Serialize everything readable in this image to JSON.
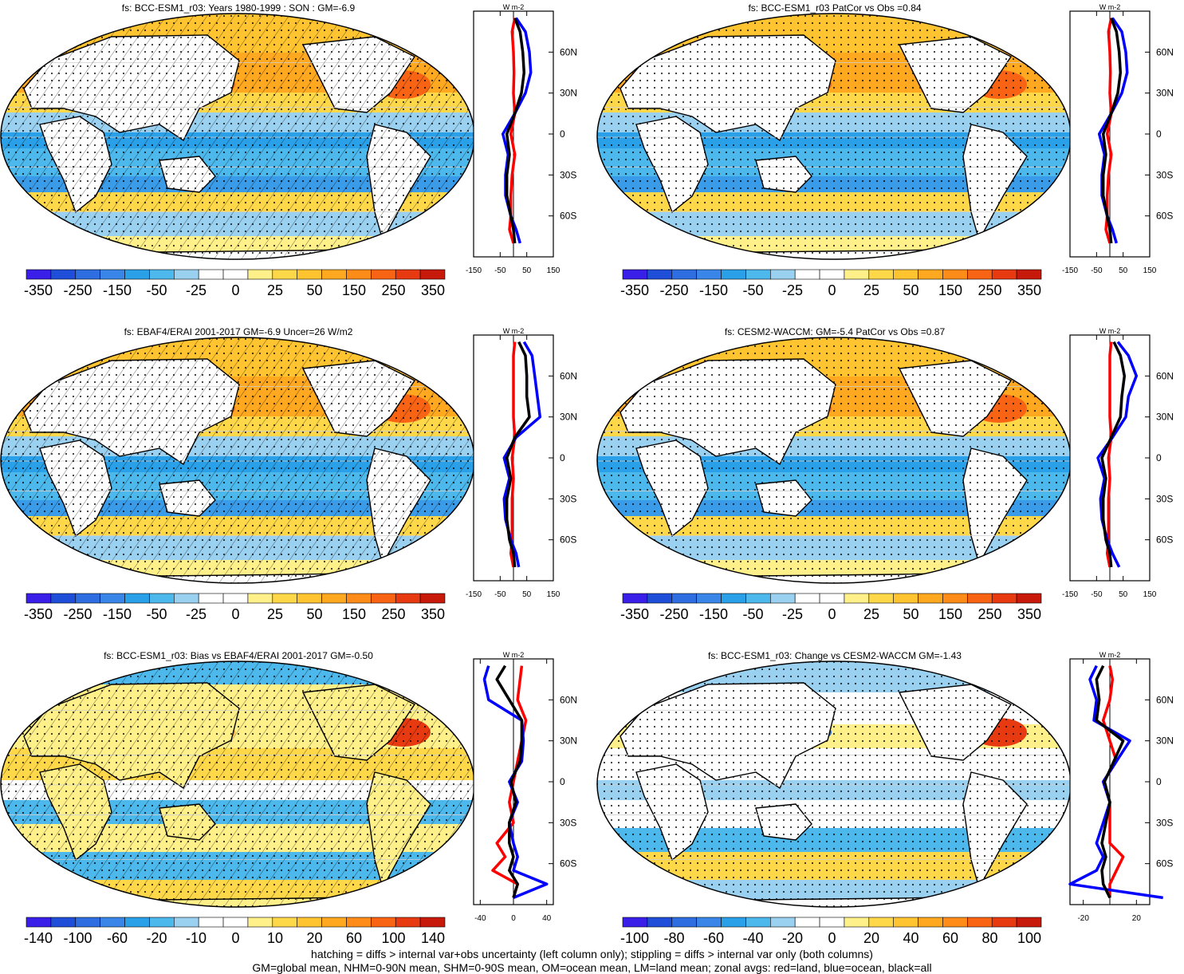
{
  "chart_data": [
    {
      "type": "map-with-zonal-profile",
      "title": "fs: BCC-ESM1_r03: Years 1980-1999 : SON : GM=-6.9",
      "colorbar_labels": [
        "-350",
        "-250",
        "-150",
        "-50",
        "-25",
        "0",
        "25",
        "50",
        "150",
        "250",
        "350"
      ],
      "zonal_unit": "W m-2",
      "zonal_xticks": [
        "-150",
        "-50",
        "50",
        "150"
      ],
      "zonal_xlim": [
        -150,
        150
      ],
      "lat_labels": [
        "60N",
        "30N",
        "0",
        "30S",
        "60S"
      ],
      "series": [
        {
          "name": "land",
          "color": "#ff0000",
          "lat": [
            85,
            75,
            60,
            45,
            30,
            15,
            0,
            -15,
            -30,
            -45,
            -60,
            -70,
            -80
          ],
          "values": [
            5,
            -5,
            0,
            2,
            0,
            5,
            -10,
            5,
            -5,
            -10,
            -10,
            -15,
            0
          ]
        },
        {
          "name": "ocean",
          "color": "#0000ff",
          "lat": [
            85,
            75,
            60,
            45,
            30,
            15,
            0,
            -15,
            -30,
            -45,
            -60,
            -70,
            -80
          ],
          "values": [
            10,
            45,
            60,
            65,
            45,
            5,
            -40,
            -20,
            -30,
            -30,
            -10,
            10,
            25
          ]
        },
        {
          "name": "all",
          "color": "#000000",
          "lat": [
            85,
            75,
            60,
            45,
            30,
            15,
            0,
            -15,
            -30,
            -45,
            -60,
            -70,
            -80
          ],
          "values": [
            5,
            25,
            35,
            40,
            30,
            5,
            -25,
            -15,
            -25,
            -25,
            -10,
            0,
            5
          ]
        }
      ]
    },
    {
      "type": "map-with-zonal-profile",
      "title": "fs: BCC-ESM1_r03 PatCor vs Obs =0.84",
      "colorbar_labels": [
        "-350",
        "-250",
        "-150",
        "-50",
        "-25",
        "0",
        "25",
        "50",
        "150",
        "250",
        "350"
      ],
      "zonal_unit": "W m-2",
      "zonal_xticks": [
        "-150",
        "-50",
        "50",
        "150"
      ],
      "zonal_xlim": [
        -150,
        150
      ],
      "lat_labels": [
        "60N",
        "30N",
        "0",
        "30S",
        "60S"
      ],
      "series": [
        {
          "name": "land",
          "color": "#ff0000",
          "lat": [
            85,
            75,
            60,
            45,
            30,
            15,
            0,
            -15,
            -30,
            -45,
            -60,
            -70,
            -80
          ],
          "values": [
            5,
            -5,
            0,
            2,
            0,
            5,
            -10,
            5,
            -5,
            -10,
            -10,
            -15,
            0
          ]
        },
        {
          "name": "ocean",
          "color": "#0000ff",
          "lat": [
            85,
            75,
            60,
            45,
            30,
            15,
            0,
            -15,
            -30,
            -45,
            -60,
            -70,
            -80
          ],
          "values": [
            10,
            45,
            60,
            65,
            45,
            5,
            -40,
            -20,
            -30,
            -30,
            -10,
            10,
            25
          ]
        },
        {
          "name": "all",
          "color": "#000000",
          "lat": [
            85,
            75,
            60,
            45,
            30,
            15,
            0,
            -15,
            -30,
            -45,
            -60,
            -70,
            -80
          ],
          "values": [
            5,
            25,
            35,
            40,
            30,
            5,
            -25,
            -15,
            -25,
            -25,
            -10,
            0,
            5
          ]
        }
      ]
    },
    {
      "type": "map-with-zonal-profile",
      "title": "fs: EBAF4/ERAI 2001-2017 GM=-6.9 Uncer=26 W/m2",
      "colorbar_labels": [
        "-350",
        "-250",
        "-150",
        "-50",
        "-25",
        "0",
        "25",
        "50",
        "150",
        "250",
        "350"
      ],
      "zonal_unit": "W m-2",
      "zonal_xticks": [
        "-150",
        "-50",
        "50",
        "150"
      ],
      "zonal_xlim": [
        -150,
        150
      ],
      "lat_labels": [
        "60N",
        "30N",
        "0",
        "30S",
        "60S"
      ],
      "series": [
        {
          "name": "land",
          "color": "#ff0000",
          "lat": [
            85,
            75,
            60,
            45,
            30,
            15,
            0,
            -15,
            -30,
            -45,
            -60,
            -70,
            -80
          ],
          "values": [
            5,
            0,
            0,
            0,
            0,
            5,
            -5,
            0,
            -5,
            -5,
            -5,
            -10,
            0
          ]
        },
        {
          "name": "ocean",
          "color": "#0000ff",
          "lat": [
            85,
            75,
            60,
            45,
            30,
            15,
            0,
            -15,
            -30,
            -45,
            -60,
            -70,
            -80
          ],
          "values": [
            40,
            70,
            80,
            90,
            100,
            10,
            -35,
            -15,
            -35,
            -30,
            -10,
            10,
            20
          ]
        },
        {
          "name": "all",
          "color": "#000000",
          "lat": [
            85,
            75,
            60,
            45,
            30,
            15,
            0,
            -15,
            -30,
            -45,
            -60,
            -70,
            -80
          ],
          "values": [
            20,
            45,
            50,
            50,
            60,
            5,
            -25,
            -10,
            -25,
            -25,
            -15,
            0,
            5
          ]
        }
      ]
    },
    {
      "type": "map-with-zonal-profile",
      "title": "fs: CESM2-WACCM: GM=-5.4 PatCor vs Obs =0.87",
      "colorbar_labels": [
        "-350",
        "-250",
        "-150",
        "-50",
        "-25",
        "0",
        "25",
        "50",
        "150",
        "250",
        "350"
      ],
      "zonal_unit": "W m-2",
      "zonal_xticks": [
        "-150",
        "-50",
        "50",
        "150"
      ],
      "zonal_xlim": [
        -150,
        150
      ],
      "lat_labels": [
        "60N",
        "30N",
        "0",
        "30S",
        "60S"
      ],
      "series": [
        {
          "name": "land",
          "color": "#ff0000",
          "lat": [
            85,
            75,
            60,
            45,
            30,
            15,
            0,
            -15,
            -30,
            -45,
            -60,
            -70,
            -80
          ],
          "values": [
            5,
            0,
            0,
            0,
            0,
            5,
            -5,
            0,
            -5,
            -5,
            -5,
            -10,
            0
          ]
        },
        {
          "name": "ocean",
          "color": "#0000ff",
          "lat": [
            85,
            75,
            60,
            45,
            30,
            15,
            0,
            -15,
            -30,
            -45,
            -60,
            -70,
            -80
          ],
          "values": [
            30,
            70,
            100,
            70,
            60,
            10,
            -45,
            -20,
            -35,
            -30,
            -10,
            10,
            35
          ]
        },
        {
          "name": "all",
          "color": "#000000",
          "lat": [
            85,
            75,
            60,
            45,
            30,
            15,
            0,
            -15,
            -30,
            -45,
            -60,
            -70,
            -80
          ],
          "values": [
            15,
            40,
            55,
            45,
            40,
            5,
            -30,
            -15,
            -25,
            -25,
            -15,
            0,
            5
          ]
        }
      ]
    },
    {
      "type": "map-with-zonal-profile",
      "title": "fs: BCC-ESM1_r03: Bias vs EBAF4/ERAI 2001-2017  GM=-0.50",
      "colorbar_labels": [
        "-140",
        "-100",
        "-60",
        "-20",
        "-10",
        "0",
        "10",
        "20",
        "60",
        "100",
        "140"
      ],
      "zonal_unit": "W m-2",
      "zonal_xticks": [
        "-40",
        "0",
        "40"
      ],
      "zonal_xlim": [
        -48,
        48
      ],
      "lat_labels": [
        "60N",
        "30N",
        "0",
        "30S",
        "60S"
      ],
      "series": [
        {
          "name": "land",
          "color": "#ff0000",
          "lat": [
            85,
            75,
            60,
            45,
            30,
            15,
            0,
            -15,
            -30,
            -45,
            -55,
            -65,
            -75,
            -85
          ],
          "values": [
            10,
            8,
            5,
            15,
            10,
            5,
            0,
            -5,
            0,
            -20,
            -10,
            -25,
            5,
            0
          ]
        },
        {
          "name": "ocean",
          "color": "#0000ff",
          "lat": [
            85,
            75,
            60,
            45,
            30,
            15,
            0,
            -15,
            -30,
            -45,
            -55,
            -65,
            -75,
            -85
          ],
          "values": [
            -30,
            -35,
            -30,
            10,
            12,
            10,
            -5,
            5,
            -5,
            0,
            5,
            0,
            40,
            0
          ]
        },
        {
          "name": "all",
          "color": "#000000",
          "lat": [
            85,
            75,
            60,
            45,
            30,
            15,
            0,
            -15,
            -30,
            -45,
            -55,
            -65,
            -75,
            -85
          ],
          "values": [
            -10,
            -20,
            -5,
            10,
            10,
            8,
            -3,
            3,
            -5,
            -5,
            0,
            -5,
            5,
            0
          ]
        }
      ]
    },
    {
      "type": "map-with-zonal-profile",
      "title": "fs: BCC-ESM1_r03: Change vs CESM2-WACCM GM=-1.43",
      "colorbar_labels": [
        "-100",
        "-80",
        "-60",
        "-40",
        "-20",
        "0",
        "20",
        "40",
        "60",
        "80",
        "100"
      ],
      "zonal_unit": "W m-2",
      "zonal_xticks": [
        "-20",
        "20"
      ],
      "zonal_xlim": [
        -30,
        30
      ],
      "lat_labels": [
        "60N",
        "30N",
        "0",
        "30S",
        "60S"
      ],
      "series": [
        {
          "name": "land",
          "color": "#ff0000",
          "lat": [
            85,
            75,
            60,
            45,
            30,
            15,
            0,
            -15,
            -30,
            -45,
            -55,
            -65,
            -75,
            -85
          ],
          "values": [
            0,
            2,
            0,
            -5,
            0,
            5,
            -5,
            0,
            0,
            0,
            10,
            5,
            0,
            0
          ]
        },
        {
          "name": "ocean",
          "color": "#0000ff",
          "lat": [
            85,
            75,
            60,
            45,
            30,
            15,
            0,
            -15,
            -30,
            -45,
            -55,
            -65,
            -75,
            -85
          ],
          "values": [
            -10,
            -15,
            -10,
            -12,
            15,
            5,
            -5,
            0,
            -5,
            -10,
            -5,
            -10,
            -30,
            40
          ]
        },
        {
          "name": "all",
          "color": "#000000",
          "lat": [
            85,
            75,
            60,
            45,
            30,
            15,
            0,
            -15,
            -30,
            -45,
            -55,
            -65,
            -75,
            -85
          ],
          "values": [
            -5,
            -10,
            -8,
            -10,
            10,
            3,
            -4,
            0,
            -3,
            -6,
            -3,
            -6,
            -5,
            0
          ]
        }
      ]
    }
  ],
  "footer": {
    "line1": "hatching = diffs > internal var+obs uncertainty (left column only); stippling = diffs > internal var only (both columns)",
    "line2": "GM=global mean, NHM=0-90N mean, SHM=0-90S mean, OM=ocean mean, LM=land mean; zonal avgs: red=land, blue=ocean, black=all"
  },
  "colors": {
    "scale_a": [
      "#3a1fe8",
      "#1f4fd8",
      "#2e6ee0",
      "#3a86e8",
      "#2aa0e8",
      "#4cb8ec",
      "#9ad0f0",
      "#ffffff",
      "#ffffff",
      "#fff08a",
      "#ffd84a",
      "#ffc430",
      "#ffa820",
      "#ff8c18",
      "#f86414",
      "#e83a10",
      "#c81a0a"
    ],
    "scale_b": [
      "#3a1fe8",
      "#1f4fd8",
      "#2e6ee0",
      "#3a86e8",
      "#2aa0e8",
      "#4cb8ec",
      "#9ad0f0",
      "#ffffff",
      "#ffffff",
      "#fff08a",
      "#ffd84a",
      "#ffc430",
      "#ffa820",
      "#ff8c18",
      "#f86414",
      "#e83a10",
      "#c81a0a"
    ]
  }
}
